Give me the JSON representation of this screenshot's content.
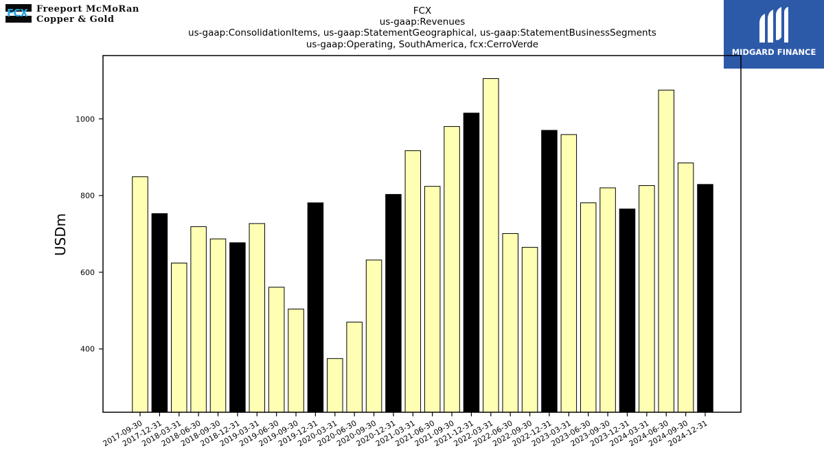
{
  "logos": {
    "fcx_mark": "FCX",
    "fcx_line1": "Freeport McMoRan",
    "fcx_line2": "Copper & Gold",
    "midgard": "MIDGARD FINANCE"
  },
  "colors": {
    "bar_default": "#ffffb3",
    "bar_q4": "#000000",
    "midgard_bg": "#2d5aa8",
    "fcx_blue": "#2aa6df"
  },
  "chart_data": {
    "type": "bar",
    "title_lines": [
      "FCX",
      "us-gaap:Revenues",
      "us-gaap:ConsolidationItems, us-gaap:StatementGeographical, us-gaap:StatementBusinessSegments",
      "us-gaap:Operating, SouthAmerica, fcx:CerroVerde"
    ],
    "xlabel": "",
    "ylabel": "USDm",
    "ylim": [
      235,
      1165
    ],
    "yticks": [
      400,
      600,
      800,
      1000
    ],
    "grid": false,
    "categories": [
      "2017-09-30",
      "2017-12-31",
      "2018-03-31",
      "2018-06-30",
      "2018-09-30",
      "2018-12-31",
      "2019-03-31",
      "2019-06-30",
      "2019-09-30",
      "2019-12-31",
      "2020-03-31",
      "2020-06-30",
      "2020-09-30",
      "2020-12-31",
      "2021-03-31",
      "2021-06-30",
      "2021-09-30",
      "2021-12-31",
      "2022-03-31",
      "2022-06-30",
      "2022-09-30",
      "2022-12-31",
      "2023-03-31",
      "2023-06-30",
      "2023-09-30",
      "2023-12-31",
      "2024-03-31",
      "2024-06-30",
      "2024-09-30",
      "2024-12-31"
    ],
    "values": [
      849,
      753,
      624,
      719,
      687,
      677,
      727,
      561,
      504,
      781,
      375,
      470,
      632,
      803,
      917,
      824,
      980,
      1015,
      1105,
      701,
      665,
      970,
      959,
      781,
      820,
      765,
      826,
      1075,
      885,
      829
    ],
    "highlight_q4": [
      false,
      true,
      false,
      false,
      false,
      true,
      false,
      false,
      false,
      true,
      false,
      false,
      false,
      true,
      false,
      false,
      false,
      true,
      false,
      false,
      false,
      true,
      false,
      false,
      false,
      true,
      false,
      false,
      false,
      true
    ]
  }
}
